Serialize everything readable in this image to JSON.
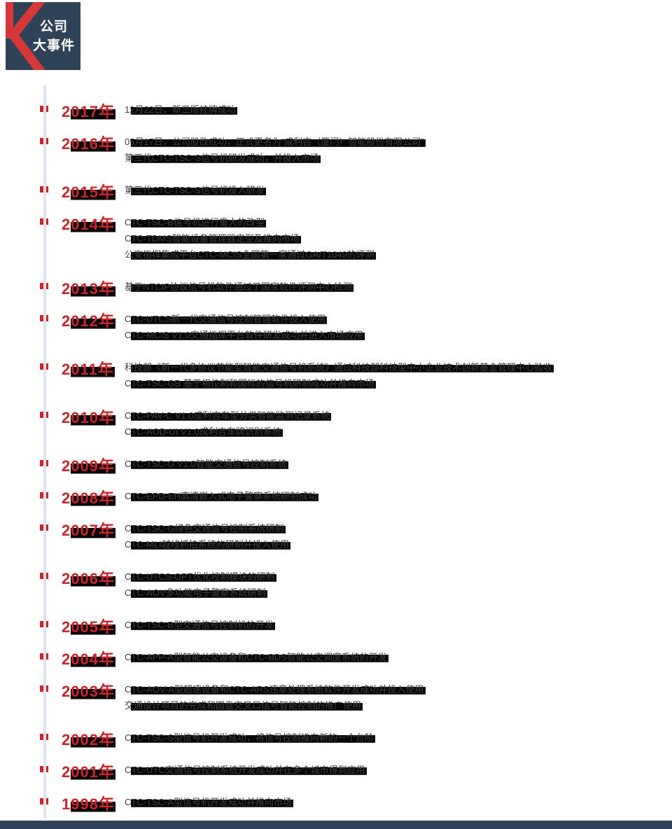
{
  "header": {
    "badge_lines": [
      "公司",
      "大事件"
    ],
    "mark": "k-chevron"
  },
  "colors": {
    "navy": "#2e4358",
    "red": "#c9252b",
    "line_blue": "#dbe4f0",
    "text": "#3e3e3e",
    "highlight": "#060606"
  },
  "timeline": {
    "entries": [
      {
        "year": "2017年",
        "events": [
          "12月22日，新三版挂牌成功"
        ]
      },
      {
        "year": "2016年",
        "events": [
          "05月17日，公司股改成功，正式更名为“成利吉（厦门）智能股份有限公司”",
          "第三代CTC-TSC-S信号机研发成功，并投入市场"
        ]
      },
      {
        "year": "2015年",
        "events": [
          "第三代CTC-TSC-S信号机投入研发"
        ]
      },
      {
        "year": "2014年",
        "events": [
          "CTC-TSC-B信号机进行重大的改型",
          "CTC-TDMS智能设备管理器定型及推向市场",
          "公安指挥集成平台CTC-MCIS全国第一家通过GA/T1049的评测"
        ]
      },
      {
        "year": "2013年",
        "events": [
          "基于NTCIP协议信号机软件通过了国家软件评测中心检测"
        ]
      },
      {
        "year": "2012年",
        "events": [
          "CTC-UTCS新一代交通信号控制管理软件投入使用",
          "CTC-MCIS V1.0交通指挥平台软件研发成功并进入市场应用"
        ]
      },
      {
        "year": "2011年",
        "events": [
          "科技部《新一代多协议节能型智能交通信号机系统》通过科技部科技型中小企业技术创新基金管理中心验收",
          "CTC-TSC-GB 基于相位制和国标的信号机研制成功并推向市场"
        ]
      },
      {
        "year": "2010年",
        "events": [
          "CTC-PAV-C V1.0成利吉车型分类智能监测记录系统",
          "CTC-AOD-UI V1.0成利吉车牌识别系统"
        ]
      },
      {
        "year": "2009年",
        "events": [
          "CTC-TSC-G V1.0智能交通信号控制系统"
        ]
      },
      {
        "year": "2008年",
        "events": [
          "CTC-EPD-EH高清嵌入式电子警察系统研制成功"
        ]
      },
      {
        "year": "2007年",
        "events": [
          "CTC-TSC-G绿色交通信号控制系统研制",
          "CTC-MLI越线抓拍系统的研制并投入使用"
        ]
      },
      {
        "year": "2006年",
        "events": [
          "CTC-UTCS-OPT优化控制模块的研制",
          "CTC-AOV多功能电子警察系统研制"
        ]
      },
      {
        "year": "2005年",
        "events": [
          "CTC-TSC-B型交通信号控制机的开发"
        ]
      },
      {
        "year": "2004年",
        "events": [
          "CTC-APP-A型智能公交设备和CTC-BDS智能公交调度系统的开发"
        ]
      },
      {
        "year": "2003年",
        "events": [
          "CTC-AOV-A型超速设备和CTC-ARS违章处理系统软件开发成功并投入使用",
          "交通设计项目的完成和圆盘交叉口信号智能控制的推广使用"
        ]
      },
      {
        "year": "2002年",
        "events": [
          "CTC-TSC-S型信号机开发成功，将信号控制推向新的一个台阶"
        ]
      },
      {
        "year": "2001年",
        "events": [
          "CTC-UTC交通信号控制系统开发成功并在多个城市得到应用"
        ]
      },
      {
        "year": "1998年",
        "events": [
          "CTC-TSC-A型信号机开发成功并推向市场"
        ]
      }
    ]
  }
}
